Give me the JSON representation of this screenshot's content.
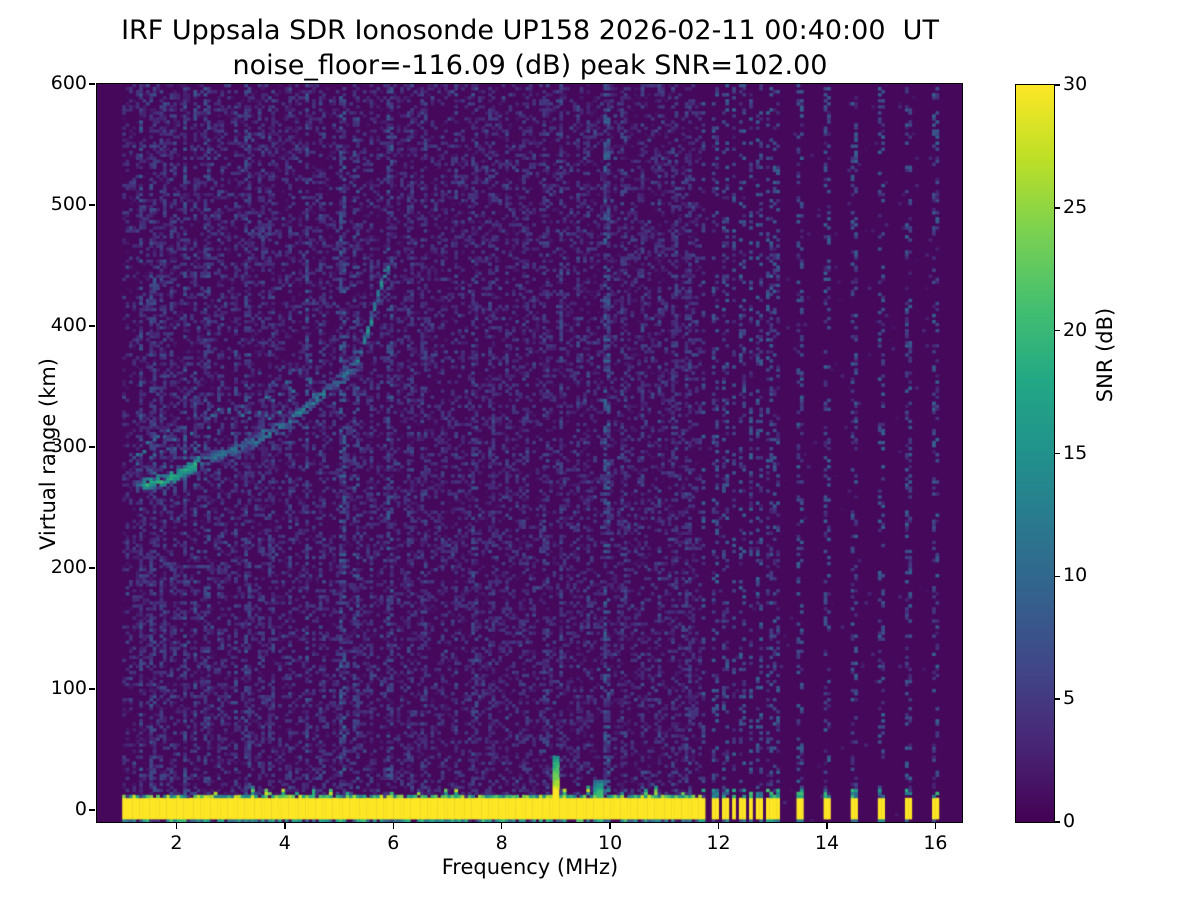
{
  "figure": {
    "background": "#ffffff",
    "text_color": "#000000"
  },
  "chart_data": {
    "type": "heatmap",
    "title": "IRF Uppsala SDR Ionosonde UP158 2026-02-11 00:40:00  UT",
    "subtitle": "noise_floor=-116.09 (dB) peak SNR=102.00",
    "xlabel": "Frequency (MHz)",
    "ylabel": "Virtual range (km)",
    "xlim": [
      0.535,
      16.49
    ],
    "ylim": [
      -10,
      600
    ],
    "xticks": [
      2,
      4,
      6,
      8,
      10,
      12,
      14,
      16
    ],
    "yticks": [
      0,
      100,
      200,
      300,
      400,
      500,
      600
    ],
    "grid": false,
    "colorbar": {
      "label": "SNR (dB)",
      "range": [
        0,
        30
      ],
      "ticks": [
        0,
        5,
        10,
        15,
        20,
        25,
        30
      ],
      "colormap": "viridis",
      "stops": [
        "#440154",
        "#482475",
        "#414487",
        "#355f8d",
        "#2a788e",
        "#21918c",
        "#22a884",
        "#44bf70",
        "#7ad151",
        "#bddf26",
        "#fde725"
      ]
    },
    "sweep": {
      "freq_start_mhz": 1.0,
      "freq_end_mhz": 16.06,
      "continuous_until_mhz": 11.68,
      "freq_step_mhz": 0.0625,
      "range_step_km": 2.5
    },
    "features": {
      "ground_pulse_band": {
        "freq_start_mhz": 1.0,
        "freq_end_mhz": 11.68,
        "top_km": 10.5,
        "bottom_km": -6.5,
        "snr_db": 30,
        "spike": {
          "freq_mhz": 9.0,
          "top_km": 44
        },
        "bump": {
          "freq_mhz": 9.78,
          "top_km": 24
        }
      },
      "discrete_bars": {
        "freqs_mhz": [
          11.72,
          11.93,
          12.12,
          12.28,
          12.44,
          12.6,
          12.76,
          12.95,
          13.08,
          13.5,
          14.0,
          14.5,
          15.0,
          15.5,
          16.0
        ],
        "narrow_width_mhz": 0.1,
        "wide_width_mhz": 0.13,
        "wide_from_mhz": 13.4,
        "snr_db": 30
      },
      "echo_trace": {
        "points": [
          [
            1.25,
            268
          ],
          [
            1.7,
            272
          ],
          [
            2.1,
            278
          ],
          [
            2.5,
            289
          ],
          [
            3.0,
            297
          ],
          [
            3.5,
            306
          ],
          [
            4.0,
            320
          ],
          [
            4.4,
            333
          ],
          [
            4.75,
            345
          ],
          [
            5.1,
            360
          ],
          [
            5.35,
            372
          ],
          [
            5.6,
            405
          ],
          [
            5.8,
            438
          ],
          [
            5.92,
            450
          ]
        ],
        "base_snr_db": 12,
        "bright_ranges": [
          [
            1.4,
            2.45,
            19
          ],
          [
            5.45,
            5.9,
            16
          ]
        ],
        "half_width_km": 5,
        "scatter_above_km": 40
      },
      "interference_stripes": {
        "half_width_mhz": 0.045,
        "list": [
          [
            1.35,
            0.5,
            7
          ],
          [
            1.55,
            0.45,
            6
          ],
          [
            1.75,
            0.35,
            5
          ],
          [
            1.95,
            0.3,
            5
          ],
          [
            2.15,
            0.5,
            7
          ],
          [
            2.35,
            0.4,
            6
          ],
          [
            2.55,
            0.35,
            6
          ],
          [
            2.8,
            0.25,
            5
          ],
          [
            3.1,
            0.4,
            6
          ],
          [
            3.3,
            0.45,
            6
          ],
          [
            3.55,
            0.3,
            5
          ],
          [
            3.75,
            0.25,
            5
          ],
          [
            4.1,
            0.3,
            5
          ],
          [
            4.4,
            0.45,
            7
          ],
          [
            4.7,
            0.3,
            5
          ],
          [
            5.05,
            0.5,
            8
          ],
          [
            5.3,
            0.35,
            6
          ],
          [
            5.6,
            0.3,
            5
          ],
          [
            5.95,
            0.45,
            7
          ],
          [
            6.3,
            0.3,
            5
          ],
          [
            6.55,
            0.35,
            5
          ],
          [
            6.9,
            0.25,
            4
          ],
          [
            7.15,
            0.3,
            5
          ],
          [
            7.5,
            0.35,
            6
          ],
          [
            7.8,
            0.25,
            4
          ],
          [
            8.1,
            0.3,
            5
          ],
          [
            8.45,
            0.25,
            4
          ],
          [
            8.8,
            0.3,
            5
          ],
          [
            9.1,
            0.35,
            6
          ],
          [
            9.4,
            0.3,
            5
          ],
          [
            9.6,
            0.3,
            5
          ],
          [
            9.95,
            0.55,
            8
          ],
          [
            10.25,
            0.3,
            5
          ],
          [
            10.6,
            0.3,
            5
          ],
          [
            10.9,
            0.35,
            6
          ],
          [
            11.2,
            0.3,
            5
          ],
          [
            11.45,
            0.3,
            5
          ]
        ]
      },
      "noise": {
        "speckle_prob": 0.28,
        "speckle_max_db": 5,
        "bright_speckle_prob": 0.05,
        "sparse_region_prob": 0.012
      }
    }
  }
}
